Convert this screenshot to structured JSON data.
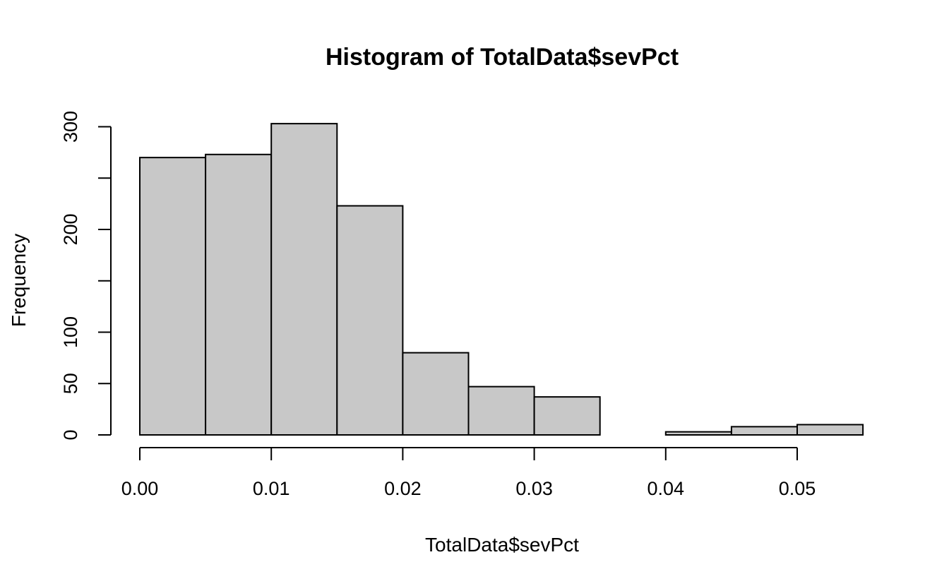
{
  "chart_data": {
    "type": "bar",
    "subtype": "histogram",
    "title": "Histogram of TotalData$sevPct",
    "xlabel": "TotalData$sevPct",
    "ylabel": "Frequency",
    "bins": [
      {
        "start": 0.0,
        "end": 0.005,
        "count": 270
      },
      {
        "start": 0.005,
        "end": 0.01,
        "count": 273
      },
      {
        "start": 0.01,
        "end": 0.015,
        "count": 303
      },
      {
        "start": 0.015,
        "end": 0.02,
        "count": 223
      },
      {
        "start": 0.02,
        "end": 0.025,
        "count": 80
      },
      {
        "start": 0.025,
        "end": 0.03,
        "count": 47
      },
      {
        "start": 0.03,
        "end": 0.035,
        "count": 37
      },
      {
        "start": 0.035,
        "end": 0.04,
        "count": 0
      },
      {
        "start": 0.04,
        "end": 0.045,
        "count": 3
      },
      {
        "start": 0.045,
        "end": 0.05,
        "count": 8
      },
      {
        "start": 0.05,
        "end": 0.055,
        "count": 10
      }
    ],
    "xlim": [
      0.0,
      0.055
    ],
    "ylim": [
      0,
      303
    ],
    "x_ticks": [
      0.0,
      0.01,
      0.02,
      0.03,
      0.04,
      0.05
    ],
    "x_tick_labels": [
      "0.00",
      "0.01",
      "0.02",
      "0.03",
      "0.04",
      "0.05"
    ],
    "y_ticks": [
      0,
      50,
      100,
      150,
      200,
      250,
      300
    ],
    "y_tick_labels": [
      "0",
      "50",
      "100",
      "",
      "200",
      "",
      "300"
    ],
    "bar_color": "#c8c8c8",
    "edge_color": "#000000",
    "grid": false,
    "legend": "none"
  }
}
